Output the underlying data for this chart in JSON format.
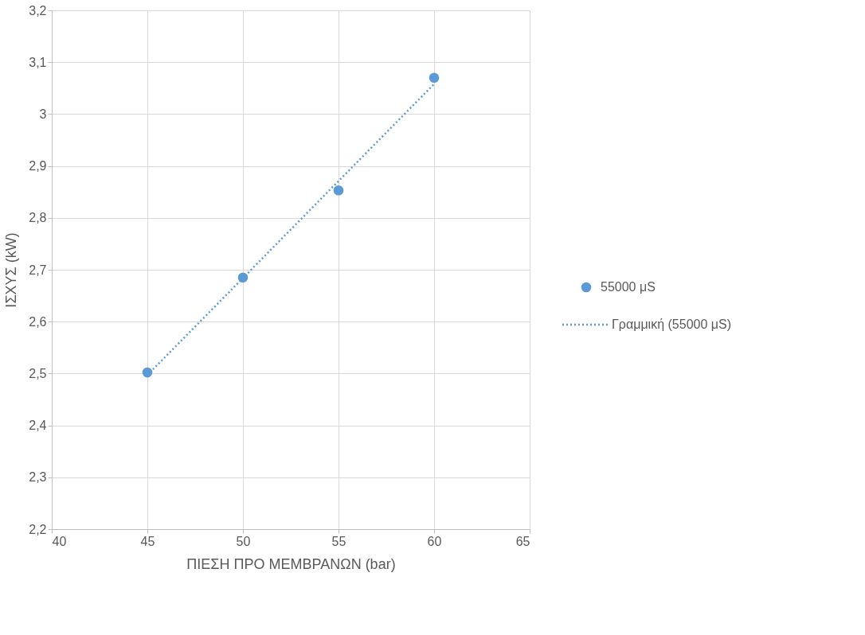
{
  "chart_data": {
    "type": "scatter",
    "xlabel": "ΠΙΕΣΗ ΠΡΟ ΜΕΜΒΡΑΝΩΝ (bar)",
    "ylabel": "ΙΣΧΥΣ (kW)",
    "x": [
      45,
      50,
      55,
      60
    ],
    "series": [
      {
        "name": "55000 μS",
        "marker": "circle",
        "color": "#5b9bd5",
        "values": [
          2.502,
          2.685,
          2.853,
          3.07
        ]
      },
      {
        "name": "Γραμμική (55000 μS)",
        "type": "line",
        "marker": "none",
        "color": "#5b9bd5",
        "line_style": "dotted",
        "x": [
          45,
          60
        ],
        "values": [
          2.497,
          3.058
        ]
      }
    ],
    "xlim": [
      40,
      65
    ],
    "xticks": [
      40,
      45,
      50,
      55,
      60,
      65
    ],
    "ylim": [
      2.2,
      3.2
    ],
    "yticks": [
      {
        "value": 2.2,
        "label": "2,2"
      },
      {
        "value": 2.3,
        "label": "2,3"
      },
      {
        "value": 2.4,
        "label": "2,4"
      },
      {
        "value": 2.5,
        "label": "2,5"
      },
      {
        "value": 2.6,
        "label": "2,6"
      },
      {
        "value": 2.7,
        "label": "2,7"
      },
      {
        "value": 2.8,
        "label": "2,8"
      },
      {
        "value": 2.9,
        "label": "2,9"
      },
      3,
      {
        "value": 3.1,
        "label": "3,1"
      },
      {
        "value": 3.2,
        "label": "3,2"
      }
    ],
    "grid": true,
    "legend": "right"
  }
}
